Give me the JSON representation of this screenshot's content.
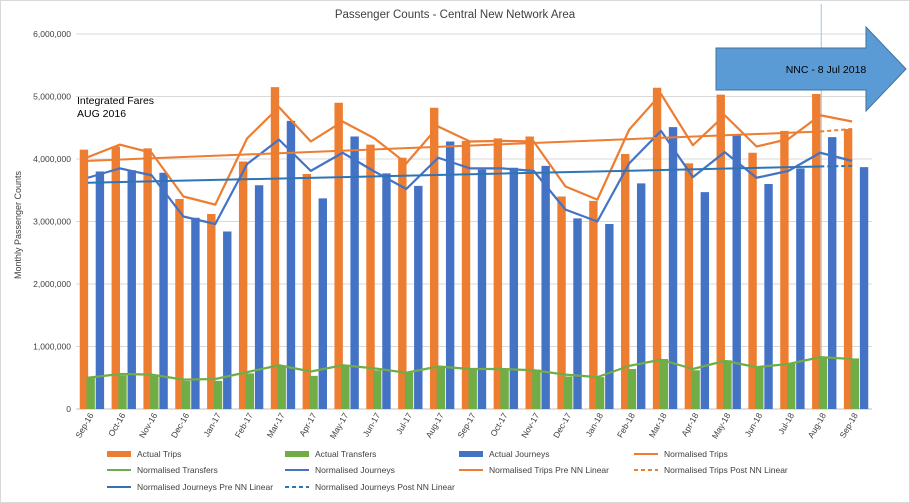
{
  "chart_data": {
    "type": "bar",
    "title": "Passenger Counts - Central New Network Area",
    "ylabel": "Monthly Passenger Counts",
    "xlabel": "",
    "ylim": [
      0,
      6000000
    ],
    "yticks": [
      0,
      1000000,
      2000000,
      3000000,
      4000000,
      5000000,
      6000000
    ],
    "ytick_labels": [
      "0",
      "1,000,000",
      "2,000,000",
      "3,000,000",
      "4,000,000",
      "5,000,000",
      "6,000,000"
    ],
    "grid": "horizontal",
    "legend_position": "bottom",
    "categories": [
      "Sep-16",
      "Oct-16",
      "Nov-16",
      "Dec-16",
      "Jan-17",
      "Feb-17",
      "Mar-17",
      "Apr-17",
      "May-17",
      "Jun-17",
      "Jul-17",
      "Aug-17",
      "Sep-17",
      "Oct-17",
      "Nov-17",
      "Dec-17",
      "Jan-18",
      "Feb-18",
      "Mar-18",
      "Apr-18",
      "May-18",
      "Jun-18",
      "Jul-18",
      "Aug-18",
      "Sep-18"
    ],
    "series": [
      {
        "name": "Actual Trips",
        "kind": "bar",
        "color": "#ED7D31",
        "values": [
          4150000,
          4200000,
          4170000,
          3360000,
          3120000,
          3960000,
          5150000,
          3760000,
          4900000,
          4230000,
          4020000,
          4820000,
          4290000,
          4330000,
          4360000,
          3400000,
          3330000,
          4080000,
          5140000,
          3930000,
          5030000,
          4100000,
          4450000,
          5040000,
          4480000
        ]
      },
      {
        "name": "Actual Transfers",
        "kind": "bar",
        "color": "#70AD47",
        "values": [
          510000,
          540000,
          540000,
          450000,
          450000,
          570000,
          690000,
          530000,
          680000,
          620000,
          580000,
          680000,
          640000,
          630000,
          630000,
          520000,
          510000,
          640000,
          800000,
          620000,
          780000,
          680000,
          720000,
          840000,
          810000
        ]
      },
      {
        "name": "Actual Journeys",
        "kind": "bar",
        "color": "#4472C4",
        "values": [
          3800000,
          3820000,
          3780000,
          3060000,
          2840000,
          3580000,
          4610000,
          3370000,
          4360000,
          3770000,
          3570000,
          4280000,
          3830000,
          3860000,
          3890000,
          3050000,
          2960000,
          3610000,
          4510000,
          3470000,
          4390000,
          3600000,
          3850000,
          4350000,
          3870000
        ]
      },
      {
        "name": "Normalised Trips",
        "kind": "line",
        "color": "#ED7D31",
        "values": [
          4030000,
          4230000,
          4100000,
          3400000,
          3270000,
          4330000,
          4830000,
          4280000,
          4600000,
          4330000,
          3930000,
          4520000,
          4280000,
          4290000,
          4280000,
          3560000,
          3350000,
          4470000,
          5040000,
          4220000,
          4700000,
          4200000,
          4320000,
          4700000,
          4600000
        ]
      },
      {
        "name": "Normalised Transfers",
        "kind": "line",
        "color": "#70AD47",
        "values": [
          500000,
          560000,
          550000,
          470000,
          480000,
          590000,
          700000,
          600000,
          700000,
          650000,
          580000,
          680000,
          640000,
          640000,
          620000,
          550000,
          510000,
          690000,
          790000,
          640000,
          770000,
          670000,
          720000,
          830000,
          800000
        ]
      },
      {
        "name": "Normalised Journeys",
        "kind": "line",
        "color": "#4472C4",
        "values": [
          3700000,
          3850000,
          3740000,
          3080000,
          2960000,
          3920000,
          4310000,
          3810000,
          4100000,
          3800000,
          3520000,
          4020000,
          3850000,
          3850000,
          3810000,
          3190000,
          3000000,
          3930000,
          4450000,
          3710000,
          4110000,
          3700000,
          3810000,
          4100000,
          3970000
        ]
      },
      {
        "name": "Normalised Trips Pre NN Linear",
        "kind": "trend",
        "color": "#ED7D31",
        "values": [
          3970000,
          null,
          null,
          null,
          null,
          null,
          null,
          null,
          null,
          null,
          null,
          null,
          null,
          null,
          null,
          null,
          null,
          null,
          null,
          null,
          null,
          null,
          null,
          4440000,
          null
        ]
      },
      {
        "name": "Normalised Trips Post NN Linear",
        "kind": "trend-dashed",
        "color": "#ED7D31",
        "values": [
          null,
          null,
          null,
          null,
          null,
          null,
          null,
          null,
          null,
          null,
          null,
          null,
          null,
          null,
          null,
          null,
          null,
          null,
          null,
          null,
          null,
          null,
          null,
          4440000,
          4480000
        ]
      },
      {
        "name": "Normalised Journeys Pre NN Linear",
        "kind": "trend",
        "color": "#2E75B6",
        "values": [
          3620000,
          null,
          null,
          null,
          null,
          null,
          null,
          null,
          null,
          null,
          null,
          null,
          null,
          null,
          null,
          null,
          null,
          null,
          null,
          null,
          null,
          null,
          null,
          3880000,
          null
        ]
      },
      {
        "name": "Normalised Journeys Post NN Linear",
        "kind": "trend-dashed",
        "color": "#2E75B6",
        "values": [
          null,
          null,
          null,
          null,
          null,
          null,
          null,
          null,
          null,
          null,
          null,
          null,
          null,
          null,
          null,
          null,
          null,
          null,
          null,
          null,
          null,
          null,
          null,
          3880000,
          3890000
        ]
      }
    ],
    "annotations": [
      {
        "text": "Integrated Fares",
        "at_category": "Sep-16"
      },
      {
        "text": "AUG 2016",
        "at_category": "Sep-16"
      },
      {
        "text": "NNC -  8 Jul 2018",
        "at_category": "Aug-18",
        "shape": "right-arrow"
      }
    ]
  }
}
